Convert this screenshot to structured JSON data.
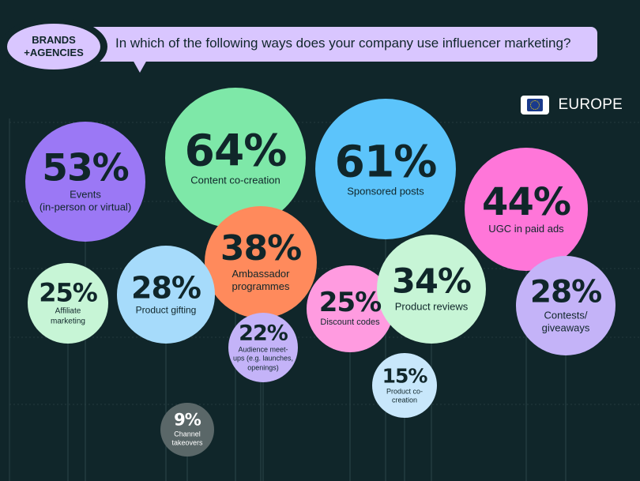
{
  "badge": {
    "line1": "BRANDS",
    "line2": "+AGENCIES"
  },
  "question": "In which of the following ways does your company use influencer marketing?",
  "region": {
    "label": "EUROPE",
    "flag_icon": "eu-flag-icon"
  },
  "colors": {
    "background": "#10262a",
    "header": "#d9c6ff",
    "purple": "#9b78f5",
    "green": "#7ee8a8",
    "blue": "#5cc4fb",
    "pink": "#ff76d9",
    "orange": "#ff8a5c",
    "mint": "#c7f5d6",
    "light_blue": "#a6dbfb",
    "light_pink": "#ff9be0",
    "lavender": "#c4b3f8",
    "pale_blue": "#c8e7fb",
    "gray": "#5a6768"
  },
  "chart_data": {
    "type": "bubble",
    "title": "",
    "items": [
      {
        "label": "Events\n(in-person or virtual)",
        "value": 53,
        "display": "53%",
        "color": "purple"
      },
      {
        "label": "Content co-creation",
        "value": 64,
        "display": "64%",
        "color": "green"
      },
      {
        "label": "Sponsored posts",
        "value": 61,
        "display": "61%",
        "color": "blue"
      },
      {
        "label": "UGC in paid ads",
        "value": 44,
        "display": "44%",
        "color": "pink"
      },
      {
        "label": "Ambassador\nprogrammes",
        "value": 38,
        "display": "38%",
        "color": "orange"
      },
      {
        "label": "Affiliate\nmarketing",
        "value": 25,
        "display": "25%",
        "color": "mint"
      },
      {
        "label": "Product gifting",
        "value": 28,
        "display": "28%",
        "color": "light_blue"
      },
      {
        "label": "Discount codes",
        "value": 25,
        "display": "25%",
        "color": "light_pink"
      },
      {
        "label": "Product reviews",
        "value": 34,
        "display": "34%",
        "color": "mint"
      },
      {
        "label": "Contests/\ngiveaways",
        "value": 28,
        "display": "28%",
        "color": "lavender"
      },
      {
        "label": "Audience meet-\nups (e.g. launches,\nopenings)",
        "value": 22,
        "display": "22%",
        "color": "lavender"
      },
      {
        "label": "Product co-\ncreation",
        "value": 15,
        "display": "15%",
        "color": "pale_blue"
      },
      {
        "label": "Channel\ntakeovers",
        "value": 9,
        "display": "9%",
        "color": "gray"
      }
    ]
  }
}
